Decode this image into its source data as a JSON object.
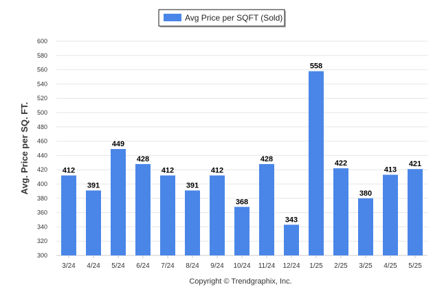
{
  "chart_data": {
    "type": "bar",
    "title": "",
    "xlabel": "",
    "ylabel": "Avg. Price per SQ. FT.",
    "legend_position": "top-center",
    "grid": true,
    "ylim": [
      300,
      600
    ],
    "yticks": [
      300,
      320,
      340,
      360,
      380,
      400,
      420,
      440,
      460,
      480,
      500,
      520,
      540,
      560,
      580,
      600
    ],
    "categories": [
      "3/24",
      "4/24",
      "5/24",
      "6/24",
      "7/24",
      "8/24",
      "9/24",
      "10/24",
      "11/24",
      "12/24",
      "1/25",
      "2/25",
      "3/25",
      "4/25",
      "5/25"
    ],
    "series": [
      {
        "name": "Avg Price per SQFT (Sold)",
        "color": "#4a86e8",
        "values": [
          412,
          391,
          449,
          428,
          412,
          391,
          412,
          368,
          428,
          343,
          558,
          422,
          380,
          413,
          421
        ]
      }
    ]
  },
  "footer": {
    "copyright": "Copyright © Trendgraphix, Inc."
  }
}
